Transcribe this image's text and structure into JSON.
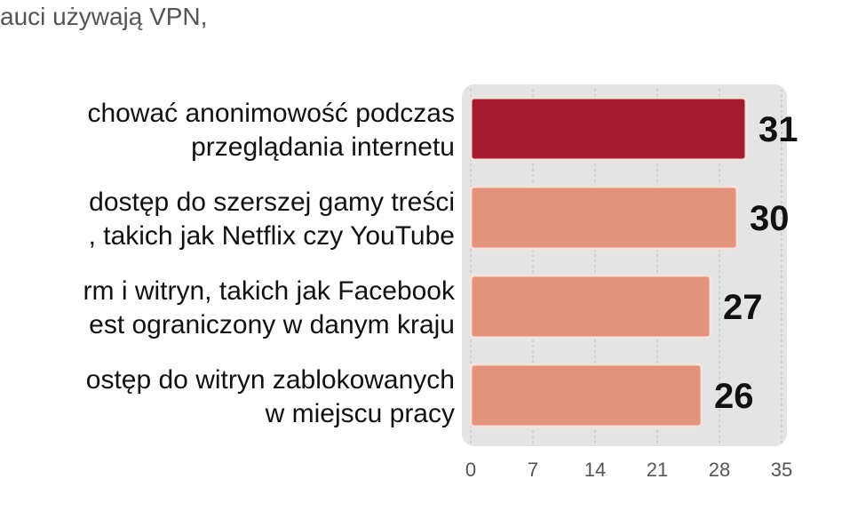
{
  "chart_data": {
    "type": "barh",
    "title": "auci używają VPN,",
    "categories": [
      [
        "chować anonimowość podczas",
        "przeglądania internetu"
      ],
      [
        "dostęp do szerszej gamy treści",
        ", takich jak Netflix czy YouTube"
      ],
      [
        "rm i witryn, takich jak Facebook",
        "est ograniczony w danym kraju"
      ],
      [
        "ostęp do witryn zablokowanych",
        "w miejscu pracy"
      ]
    ],
    "values": [
      31,
      30,
      27,
      26
    ],
    "colors": [
      "#a51c30",
      "#e3927c",
      "#e3927c",
      "#e3927c"
    ],
    "xlim": [
      0,
      35
    ],
    "xticks": [
      0,
      7,
      14,
      21,
      28,
      35
    ],
    "grid": true
  }
}
